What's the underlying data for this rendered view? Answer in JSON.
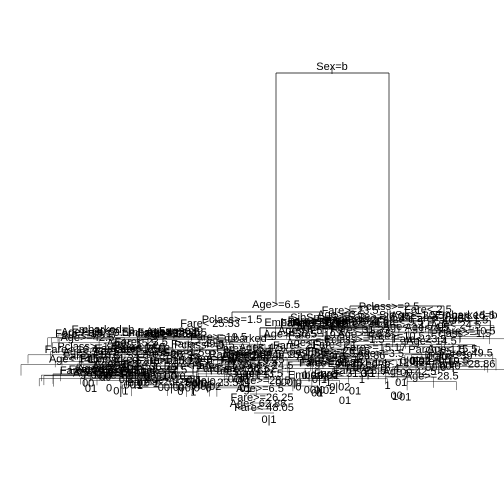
{
  "tree": {
    "root": "Sex=b",
    "level1_left": "Age>=6.5",
    "level1_right": "Pclass>=2.5",
    "level2": [
      "Pclass>=1.5",
      "SibSp>=2.5",
      "Fare>=23.5",
      "Fare< 2.5"
    ],
    "level3": [
      "Age>=4.5",
      "Fare< 28.86",
      "Embarked=",
      "Fare< 25.53"
    ],
    "dense_labels": [
      "Fare>=15.17",
      "Fare< 7.91",
      "SibSp>=1.5",
      "Age< 15.5",
      "Fare< 9.5",
      "Fare>=26.25",
      "Pclass>=1.5",
      "Embarked=",
      "Fare< 12.62",
      "Age< 24.5",
      "Fare< 31.33",
      "Age>=30.5",
      "Age< 4.5",
      "Parch>=1.5",
      "Fare>=19.5",
      "Age>=28.5",
      "Fare< 39",
      "Age< 36.75",
      "Fare< 16.4",
      "Fare>=46.25",
      "Age< 5.5",
      "Age>=3.5",
      "Fare< 21",
      "Age< 14.5",
      "Fare>=28.86",
      "Fare< 23.5",
      "Embarked=b",
      "Fare>=10.5",
      "Age>=42.5",
      "Fare< 49.5"
    ],
    "deep_labels": [
      "Age>=6.5",
      "Fare>=26.25",
      "Age< 62.88",
      "Fare< 48.05"
    ],
    "leaf_values": [
      "0",
      "1",
      "00",
      "01",
      "0|1",
      "00|0",
      "0|02"
    ]
  }
}
